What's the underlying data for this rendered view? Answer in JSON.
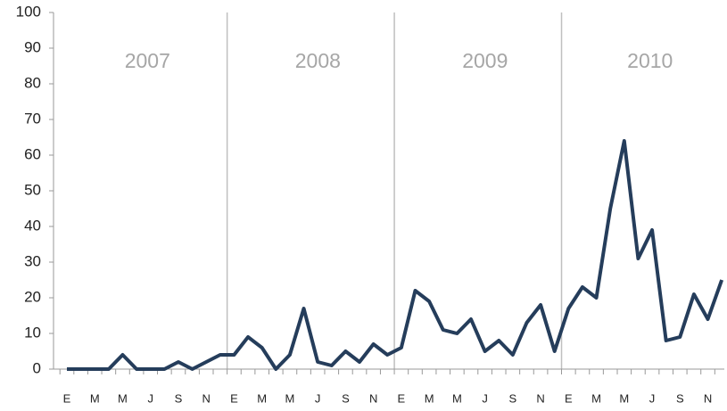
{
  "chart_data": {
    "type": "line",
    "categories": [
      "E",
      null,
      "M",
      null,
      "M",
      null,
      "J",
      null,
      "S",
      null,
      "N",
      null,
      "E",
      null,
      "M",
      null,
      "M",
      null,
      "J",
      null,
      "S",
      null,
      "N",
      null,
      "E",
      null,
      "M",
      null,
      "M",
      null,
      "J",
      null,
      "S",
      null,
      "N",
      null,
      "E",
      null,
      "M",
      null,
      "M",
      null,
      "J",
      null,
      "S",
      null,
      "N",
      null
    ],
    "year_labels": [
      "2007",
      "2008",
      "2009",
      "2010"
    ],
    "values": [
      0,
      0,
      0,
      0,
      4,
      0,
      0,
      0,
      2,
      0,
      2,
      4,
      4,
      9,
      6,
      0,
      4,
      17,
      2,
      1,
      5,
      2,
      7,
      4,
      6,
      22,
      19,
      11,
      10,
      14,
      5,
      8,
      4,
      13,
      18,
      5,
      17,
      23,
      20,
      45,
      64,
      31,
      39,
      8,
      9,
      21,
      14,
      25
    ],
    "color": "#253d5b",
    "ylim": [
      0,
      100
    ],
    "yticks": [
      0,
      10,
      20,
      30,
      40,
      50,
      60,
      70,
      80,
      90,
      100
    ]
  }
}
